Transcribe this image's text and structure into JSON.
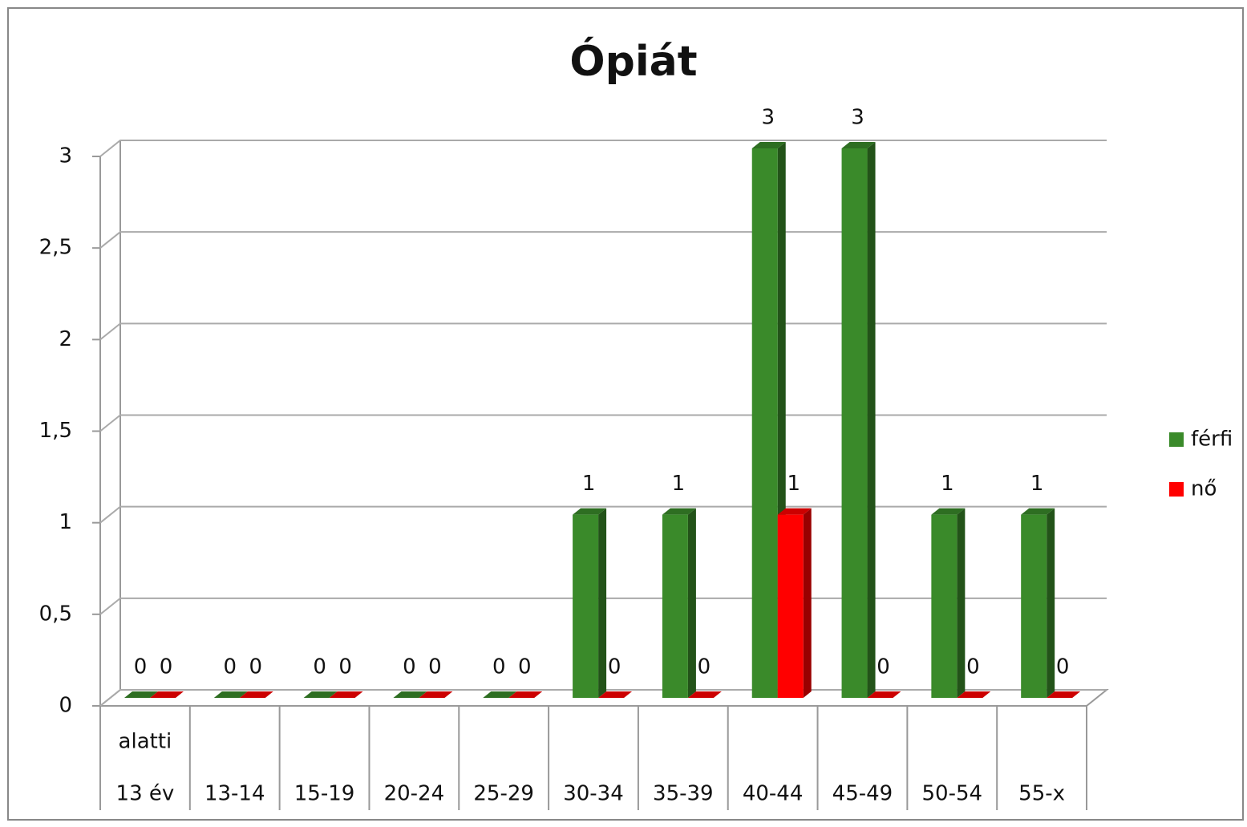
{
  "chart_data": {
    "type": "bar3d",
    "title": "Ópiát",
    "categories": [
      "13 év",
      "13-14",
      "15-19",
      "20-24",
      "25-29",
      "30-34",
      "35-39",
      "40-44",
      "45-49",
      "50-54",
      "55-x"
    ],
    "category_sublabels": [
      "alatti",
      null,
      null,
      null,
      null,
      null,
      null,
      null,
      null,
      null,
      null
    ],
    "series": [
      {
        "name": "férfi",
        "color": "#3a8a2a",
        "values": [
          0,
          0,
          0,
          0,
          0,
          1,
          1,
          3,
          3,
          1,
          1
        ]
      },
      {
        "name": "nő",
        "color": "#ff0000",
        "values": [
          0,
          0,
          0,
          0,
          0,
          0,
          0,
          1,
          0,
          0,
          0
        ]
      }
    ],
    "ylim": [
      0,
      3
    ],
    "yticks": [
      0,
      {
        "value": 0.5,
        "label": "0,5"
      },
      1,
      {
        "value": 1.5,
        "label": "1,5"
      },
      2,
      {
        "value": 2.5,
        "label": "2,5"
      },
      3
    ],
    "grid": true,
    "legend": "right"
  }
}
